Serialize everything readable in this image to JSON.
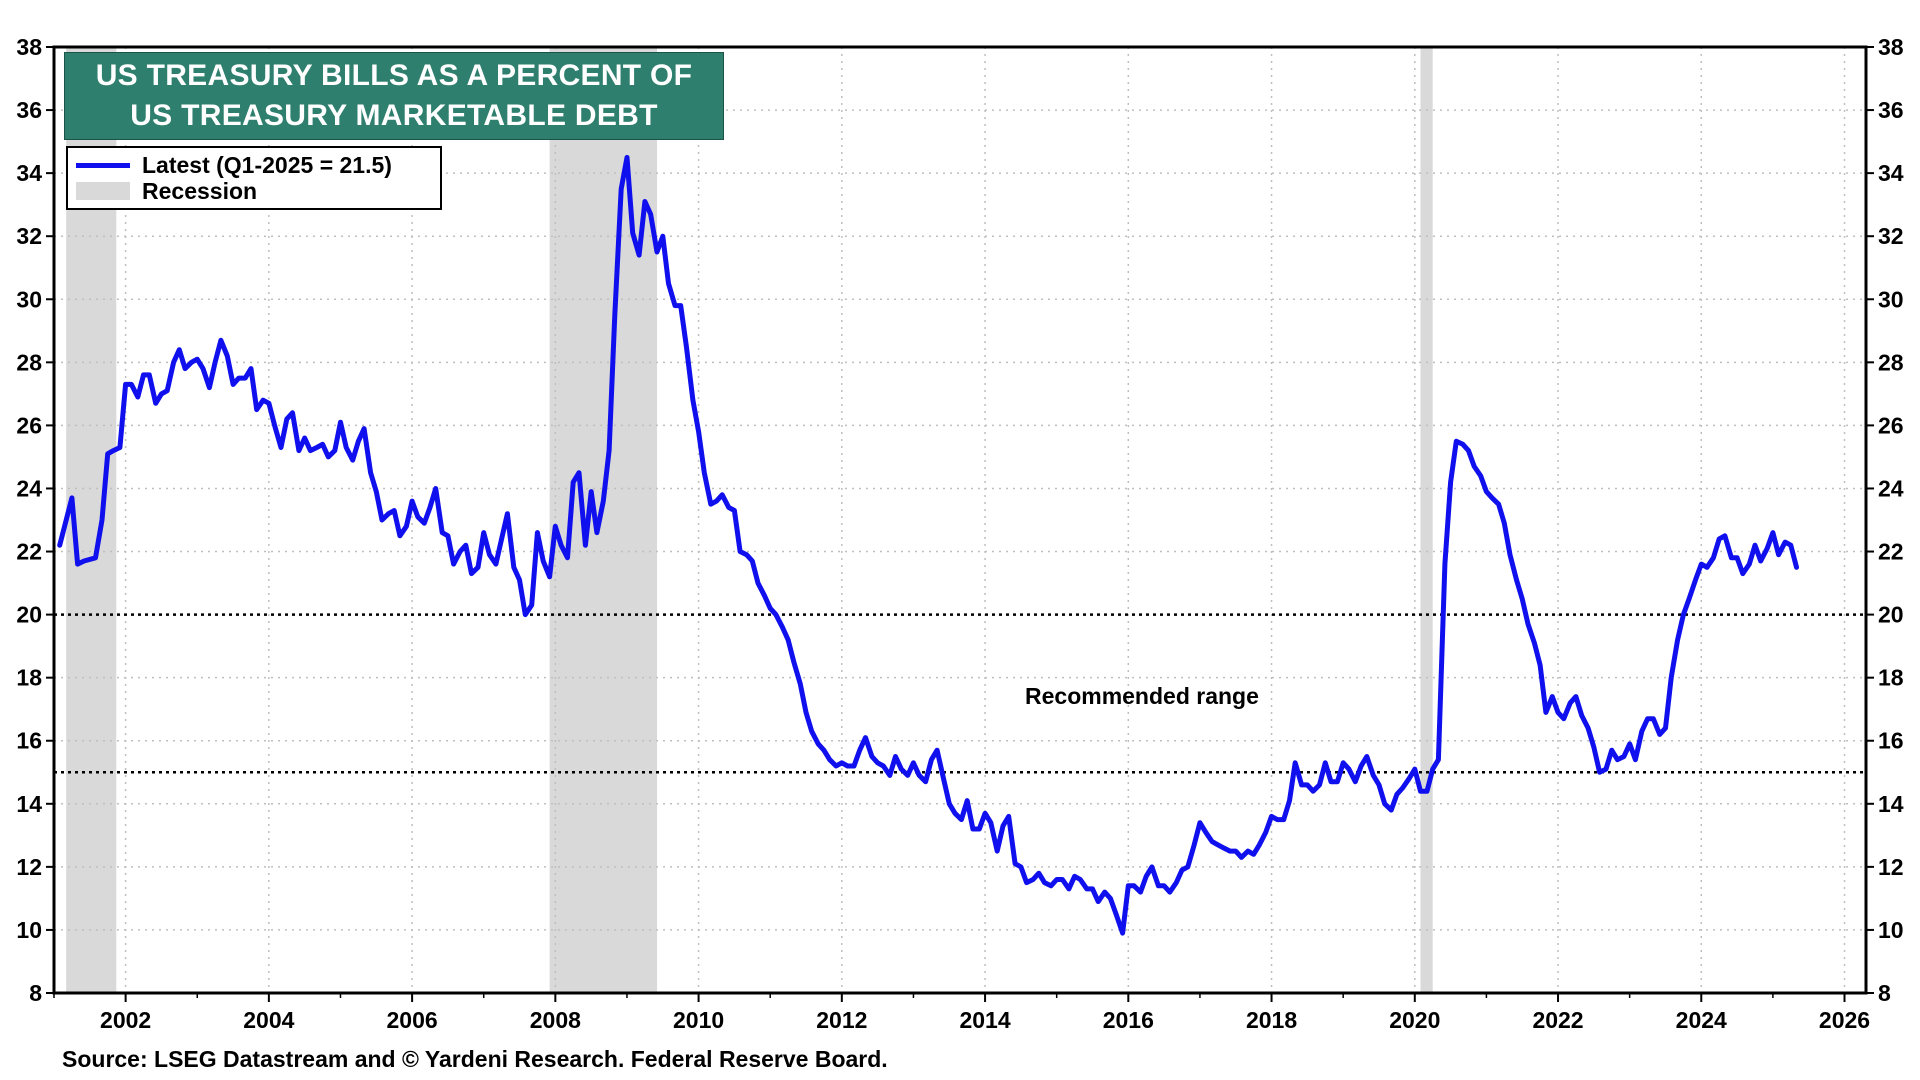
{
  "title": {
    "line1": "US TREASURY BILLS AS A PERCENT OF",
    "line2": "US TREASURY MARKETABLE DEBT"
  },
  "legend": {
    "latest_label": "Latest (Q1-2025 = 21.5)",
    "recession_label": "Recession"
  },
  "annotation": "Recommended range",
  "source": "Source: LSEG Datastream and © Yardeni Research. Federal Reserve Board.",
  "colors": {
    "series": "#1010ee",
    "recession": "#d9d9d9",
    "title_bg": "#2e7f6e",
    "title_text": "#ffffff",
    "grid": "#bfbfbf"
  },
  "chart_data": {
    "type": "line",
    "title": "US TREASURY BILLS AS A PERCENT OF US TREASURY MARKETABLE DEBT",
    "xlabel": "",
    "ylabel": "",
    "xlim": [
      2001.0,
      2026.3
    ],
    "ylim": [
      8,
      38
    ],
    "x_ticks": [
      2002,
      2004,
      2006,
      2008,
      2010,
      2012,
      2014,
      2016,
      2018,
      2020,
      2022,
      2024,
      2026
    ],
    "y_ticks": [
      8,
      10,
      12,
      14,
      16,
      18,
      20,
      22,
      24,
      26,
      28,
      30,
      32,
      34,
      36,
      38
    ],
    "grid": true,
    "legend_position": "top-left",
    "recessions": [
      [
        2001.17,
        2001.87
      ],
      [
        2007.92,
        2009.42
      ],
      [
        2020.08,
        2020.25
      ]
    ],
    "reference_lines": [
      {
        "y": 20,
        "style": "dotted"
      },
      {
        "y": 15,
        "style": "dotted"
      }
    ],
    "series": [
      {
        "name": "Latest (Q1-2025 = 21.5)",
        "points": [
          [
            2001.08,
            22.2
          ],
          [
            2001.25,
            23.7
          ],
          [
            2001.33,
            21.6
          ],
          [
            2001.42,
            21.7
          ],
          [
            2001.58,
            21.8
          ],
          [
            2001.67,
            23.0
          ],
          [
            2001.75,
            25.1
          ],
          [
            2001.83,
            25.2
          ],
          [
            2001.92,
            25.3
          ],
          [
            2002.0,
            27.3
          ],
          [
            2002.08,
            27.3
          ],
          [
            2002.17,
            26.9
          ],
          [
            2002.25,
            27.6
          ],
          [
            2002.33,
            27.6
          ],
          [
            2002.42,
            26.7
          ],
          [
            2002.5,
            27.0
          ],
          [
            2002.58,
            27.1
          ],
          [
            2002.67,
            28.0
          ],
          [
            2002.75,
            28.4
          ],
          [
            2002.83,
            27.8
          ],
          [
            2002.92,
            28.0
          ],
          [
            2003.0,
            28.1
          ],
          [
            2003.08,
            27.8
          ],
          [
            2003.17,
            27.2
          ],
          [
            2003.25,
            28.0
          ],
          [
            2003.33,
            28.7
          ],
          [
            2003.42,
            28.2
          ],
          [
            2003.5,
            27.3
          ],
          [
            2003.58,
            27.5
          ],
          [
            2003.67,
            27.5
          ],
          [
            2003.75,
            27.8
          ],
          [
            2003.83,
            26.5
          ],
          [
            2003.92,
            26.8
          ],
          [
            2004.0,
            26.7
          ],
          [
            2004.08,
            26.0
          ],
          [
            2004.17,
            25.3
          ],
          [
            2004.25,
            26.2
          ],
          [
            2004.33,
            26.4
          ],
          [
            2004.42,
            25.2
          ],
          [
            2004.5,
            25.6
          ],
          [
            2004.58,
            25.2
          ],
          [
            2004.67,
            25.3
          ],
          [
            2004.75,
            25.4
          ],
          [
            2004.83,
            25.0
          ],
          [
            2004.92,
            25.2
          ],
          [
            2005.0,
            26.1
          ],
          [
            2005.08,
            25.3
          ],
          [
            2005.17,
            24.9
          ],
          [
            2005.25,
            25.5
          ],
          [
            2005.33,
            25.9
          ],
          [
            2005.42,
            24.5
          ],
          [
            2005.5,
            23.9
          ],
          [
            2005.58,
            23.0
          ],
          [
            2005.67,
            23.2
          ],
          [
            2005.75,
            23.3
          ],
          [
            2005.83,
            22.5
          ],
          [
            2005.92,
            22.8
          ],
          [
            2006.0,
            23.6
          ],
          [
            2006.08,
            23.1
          ],
          [
            2006.17,
            22.9
          ],
          [
            2006.25,
            23.4
          ],
          [
            2006.33,
            24.0
          ],
          [
            2006.42,
            22.6
          ],
          [
            2006.5,
            22.5
          ],
          [
            2006.58,
            21.6
          ],
          [
            2006.67,
            22.0
          ],
          [
            2006.75,
            22.2
          ],
          [
            2006.83,
            21.3
          ],
          [
            2006.92,
            21.5
          ],
          [
            2007.0,
            22.6
          ],
          [
            2007.08,
            21.9
          ],
          [
            2007.17,
            21.6
          ],
          [
            2007.25,
            22.4
          ],
          [
            2007.33,
            23.2
          ],
          [
            2007.42,
            21.5
          ],
          [
            2007.5,
            21.1
          ],
          [
            2007.58,
            20.0
          ],
          [
            2007.67,
            20.3
          ],
          [
            2007.75,
            22.6
          ],
          [
            2007.83,
            21.7
          ],
          [
            2007.92,
            21.2
          ],
          [
            2008.0,
            22.8
          ],
          [
            2008.08,
            22.2
          ],
          [
            2008.17,
            21.8
          ],
          [
            2008.25,
            24.2
          ],
          [
            2008.33,
            24.5
          ],
          [
            2008.42,
            22.2
          ],
          [
            2008.5,
            23.9
          ],
          [
            2008.58,
            22.6
          ],
          [
            2008.67,
            23.6
          ],
          [
            2008.75,
            25.2
          ],
          [
            2008.83,
            29.5
          ],
          [
            2008.92,
            33.5
          ],
          [
            2009.0,
            34.5
          ],
          [
            2009.08,
            32.1
          ],
          [
            2009.17,
            31.4
          ],
          [
            2009.25,
            33.1
          ],
          [
            2009.33,
            32.7
          ],
          [
            2009.42,
            31.5
          ],
          [
            2009.5,
            32.0
          ],
          [
            2009.58,
            30.5
          ],
          [
            2009.67,
            29.8
          ],
          [
            2009.75,
            29.8
          ],
          [
            2009.83,
            28.5
          ],
          [
            2009.92,
            26.8
          ],
          [
            2010.0,
            25.8
          ],
          [
            2010.08,
            24.5
          ],
          [
            2010.17,
            23.5
          ],
          [
            2010.25,
            23.6
          ],
          [
            2010.33,
            23.8
          ],
          [
            2010.42,
            23.4
          ],
          [
            2010.5,
            23.3
          ],
          [
            2010.58,
            22.0
          ],
          [
            2010.67,
            21.9
          ],
          [
            2010.75,
            21.7
          ],
          [
            2010.83,
            21.0
          ],
          [
            2010.92,
            20.6
          ],
          [
            2011.0,
            20.2
          ],
          [
            2011.08,
            20.0
          ],
          [
            2011.17,
            19.6
          ],
          [
            2011.25,
            19.2
          ],
          [
            2011.33,
            18.5
          ],
          [
            2011.42,
            17.8
          ],
          [
            2011.5,
            16.9
          ],
          [
            2011.58,
            16.3
          ],
          [
            2011.67,
            15.9
          ],
          [
            2011.75,
            15.7
          ],
          [
            2011.83,
            15.4
          ],
          [
            2011.92,
            15.2
          ],
          [
            2012.0,
            15.3
          ],
          [
            2012.08,
            15.2
          ],
          [
            2012.17,
            15.2
          ],
          [
            2012.25,
            15.7
          ],
          [
            2012.33,
            16.1
          ],
          [
            2012.42,
            15.5
          ],
          [
            2012.5,
            15.3
          ],
          [
            2012.58,
            15.2
          ],
          [
            2012.67,
            14.9
          ],
          [
            2012.75,
            15.5
          ],
          [
            2012.83,
            15.1
          ],
          [
            2012.92,
            14.9
          ],
          [
            2013.0,
            15.3
          ],
          [
            2013.08,
            14.9
          ],
          [
            2013.17,
            14.7
          ],
          [
            2013.25,
            15.4
          ],
          [
            2013.33,
            15.7
          ],
          [
            2013.42,
            14.8
          ],
          [
            2013.5,
            14.0
          ],
          [
            2013.58,
            13.7
          ],
          [
            2013.67,
            13.5
          ],
          [
            2013.75,
            14.1
          ],
          [
            2013.83,
            13.2
          ],
          [
            2013.92,
            13.2
          ],
          [
            2014.0,
            13.7
          ],
          [
            2014.08,
            13.4
          ],
          [
            2014.17,
            12.5
          ],
          [
            2014.25,
            13.3
          ],
          [
            2014.33,
            13.6
          ],
          [
            2014.42,
            12.1
          ],
          [
            2014.5,
            12.0
          ],
          [
            2014.58,
            11.5
          ],
          [
            2014.67,
            11.6
          ],
          [
            2014.75,
            11.8
          ],
          [
            2014.83,
            11.5
          ],
          [
            2014.92,
            11.4
          ],
          [
            2015.0,
            11.6
          ],
          [
            2015.08,
            11.6
          ],
          [
            2015.17,
            11.3
          ],
          [
            2015.25,
            11.7
          ],
          [
            2015.33,
            11.6
          ],
          [
            2015.42,
            11.3
          ],
          [
            2015.5,
            11.3
          ],
          [
            2015.58,
            10.9
          ],
          [
            2015.67,
            11.2
          ],
          [
            2015.75,
            11.0
          ],
          [
            2015.83,
            10.5
          ],
          [
            2015.92,
            9.9
          ],
          [
            2016.0,
            11.4
          ],
          [
            2016.08,
            11.4
          ],
          [
            2016.17,
            11.2
          ],
          [
            2016.25,
            11.7
          ],
          [
            2016.33,
            12.0
          ],
          [
            2016.42,
            11.4
          ],
          [
            2016.5,
            11.4
          ],
          [
            2016.58,
            11.2
          ],
          [
            2016.67,
            11.5
          ],
          [
            2016.75,
            11.9
          ],
          [
            2016.83,
            12.0
          ],
          [
            2016.92,
            12.7
          ],
          [
            2017.0,
            13.4
          ],
          [
            2017.08,
            13.1
          ],
          [
            2017.17,
            12.8
          ],
          [
            2017.25,
            12.7
          ],
          [
            2017.33,
            12.6
          ],
          [
            2017.42,
            12.5
          ],
          [
            2017.5,
            12.5
          ],
          [
            2017.58,
            12.3
          ],
          [
            2017.67,
            12.5
          ],
          [
            2017.75,
            12.4
          ],
          [
            2017.83,
            12.7
          ],
          [
            2017.92,
            13.1
          ],
          [
            2018.0,
            13.6
          ],
          [
            2018.08,
            13.5
          ],
          [
            2018.17,
            13.5
          ],
          [
            2018.25,
            14.1
          ],
          [
            2018.33,
            15.3
          ],
          [
            2018.42,
            14.6
          ],
          [
            2018.5,
            14.6
          ],
          [
            2018.58,
            14.4
          ],
          [
            2018.67,
            14.6
          ],
          [
            2018.75,
            15.3
          ],
          [
            2018.83,
            14.7
          ],
          [
            2018.92,
            14.7
          ],
          [
            2019.0,
            15.3
          ],
          [
            2019.08,
            15.1
          ],
          [
            2019.17,
            14.7
          ],
          [
            2019.25,
            15.2
          ],
          [
            2019.33,
            15.5
          ],
          [
            2019.42,
            14.9
          ],
          [
            2019.5,
            14.6
          ],
          [
            2019.58,
            14.0
          ],
          [
            2019.67,
            13.8
          ],
          [
            2019.75,
            14.3
          ],
          [
            2019.83,
            14.5
          ],
          [
            2019.92,
            14.8
          ],
          [
            2020.0,
            15.1
          ],
          [
            2020.08,
            14.4
          ],
          [
            2020.17,
            14.4
          ],
          [
            2020.25,
            15.1
          ],
          [
            2020.33,
            15.4
          ],
          [
            2020.42,
            21.6
          ],
          [
            2020.5,
            24.2
          ],
          [
            2020.58,
            25.5
          ],
          [
            2020.67,
            25.4
          ],
          [
            2020.75,
            25.2
          ],
          [
            2020.83,
            24.7
          ],
          [
            2020.92,
            24.4
          ],
          [
            2021.0,
            23.9
          ],
          [
            2021.08,
            23.7
          ],
          [
            2021.17,
            23.5
          ],
          [
            2021.25,
            22.9
          ],
          [
            2021.33,
            21.9
          ],
          [
            2021.42,
            21.1
          ],
          [
            2021.5,
            20.5
          ],
          [
            2021.58,
            19.7
          ],
          [
            2021.67,
            19.1
          ],
          [
            2021.75,
            18.4
          ],
          [
            2021.83,
            16.9
          ],
          [
            2021.92,
            17.4
          ],
          [
            2022.0,
            16.9
          ],
          [
            2022.08,
            16.7
          ],
          [
            2022.17,
            17.2
          ],
          [
            2022.25,
            17.4
          ],
          [
            2022.33,
            16.8
          ],
          [
            2022.42,
            16.4
          ],
          [
            2022.5,
            15.8
          ],
          [
            2022.58,
            15.0
          ],
          [
            2022.67,
            15.1
          ],
          [
            2022.75,
            15.7
          ],
          [
            2022.83,
            15.4
          ],
          [
            2022.92,
            15.5
          ],
          [
            2023.0,
            15.9
          ],
          [
            2023.08,
            15.4
          ],
          [
            2023.17,
            16.3
          ],
          [
            2023.25,
            16.7
          ],
          [
            2023.33,
            16.7
          ],
          [
            2023.42,
            16.2
          ],
          [
            2023.5,
            16.4
          ],
          [
            2023.58,
            18.0
          ],
          [
            2023.67,
            19.2
          ],
          [
            2023.75,
            20.0
          ],
          [
            2023.83,
            20.5
          ],
          [
            2023.92,
            21.1
          ],
          [
            2024.0,
            21.6
          ],
          [
            2024.08,
            21.5
          ],
          [
            2024.17,
            21.8
          ],
          [
            2024.25,
            22.4
          ],
          [
            2024.33,
            22.5
          ],
          [
            2024.42,
            21.8
          ],
          [
            2024.5,
            21.8
          ],
          [
            2024.58,
            21.3
          ],
          [
            2024.67,
            21.6
          ],
          [
            2024.75,
            22.2
          ],
          [
            2024.83,
            21.7
          ],
          [
            2024.92,
            22.1
          ],
          [
            2025.0,
            22.6
          ],
          [
            2025.08,
            21.9
          ],
          [
            2025.17,
            22.3
          ],
          [
            2025.25,
            22.2
          ],
          [
            2025.33,
            21.5
          ]
        ]
      }
    ]
  }
}
